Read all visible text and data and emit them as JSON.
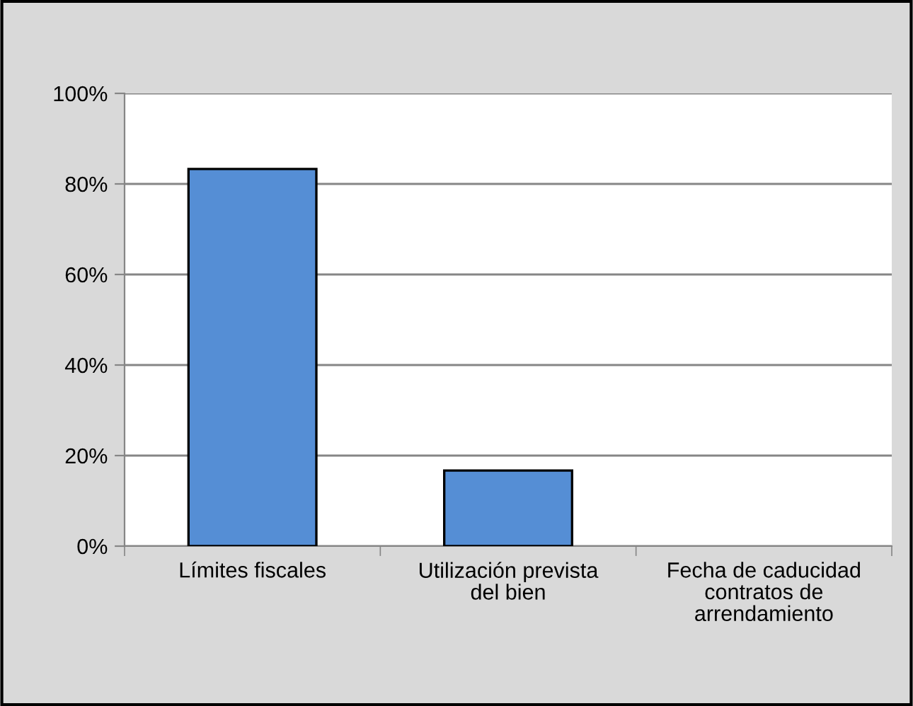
{
  "chart_data": {
    "type": "bar",
    "categories": [
      "Límites fiscales",
      "Utilización prevista\ndel bien",
      "Fecha de caducidad\ncontratos de\narrendamiento"
    ],
    "values": [
      83.3,
      16.7,
      0
    ],
    "color": "#558ed5",
    "ylim": [
      0,
      100
    ],
    "yticks": [
      {
        "value": 0,
        "label": "0%"
      },
      {
        "value": 20,
        "label": "20%"
      },
      {
        "value": 40,
        "label": "40%"
      },
      {
        "value": 60,
        "label": "60%"
      },
      {
        "value": 80,
        "label": "80%"
      },
      {
        "value": 100,
        "label": "100%"
      }
    ],
    "grid": "y",
    "legend": false
  }
}
